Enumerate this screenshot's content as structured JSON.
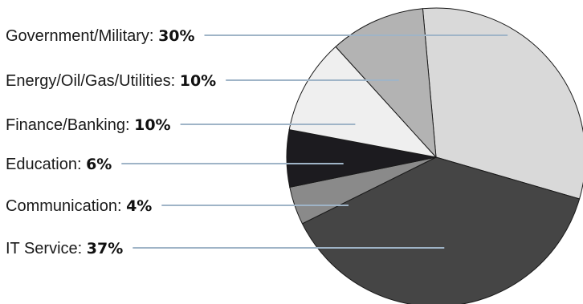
{
  "chart_data": {
    "type": "pie",
    "slices": [
      {
        "category": "Government/Military",
        "label": "Government/Military: ",
        "value": 30,
        "value_label": "30%",
        "color": "#d9d9d9"
      },
      {
        "category": "IT Service",
        "label": "IT Service: ",
        "value": 37,
        "value_label": "37%",
        "color": "#454545"
      },
      {
        "category": "Communication",
        "label": "Communication: ",
        "value": 4,
        "value_label": "4%",
        "color": "#8a8a8a"
      },
      {
        "category": "Education",
        "label": "Education: ",
        "value": 6,
        "value_label": "6%",
        "color": "#1c1b1f"
      },
      {
        "category": "Finance/Banking",
        "label": "Finance/Banking: ",
        "value": 10,
        "value_label": "10%",
        "color": "#efefef"
      },
      {
        "category": "Energy/Oil/Gas/Utilities",
        "label": "Energy/Oil/Gas/Utilities: ",
        "value": 10,
        "value_label": "10%",
        "color": "#b3b3b3"
      }
    ],
    "legend_order": [
      "Government/Military",
      "Energy/Oil/Gas/Utilities",
      "Finance/Banking",
      "Education",
      "Communication",
      "IT Service"
    ],
    "leader_line_color": "#9fb4c7",
    "slice_stroke_color": "#1a1a1a",
    "title": "",
    "legend_placement": "left"
  }
}
